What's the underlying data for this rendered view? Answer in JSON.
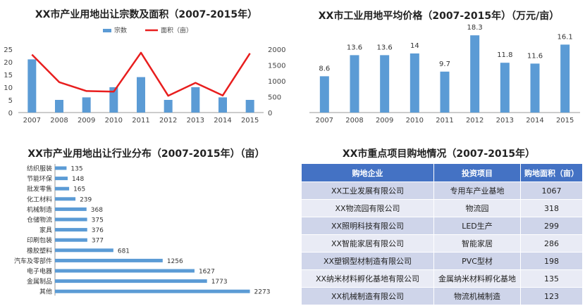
{
  "chart1": {
    "title": "XX市产业用地出让宗数及面积（2007-2015年）",
    "legend": [
      "宗数",
      "面积（亩）"
    ],
    "colors": {
      "bar": "#5B9BD5",
      "line": "#E81E1E"
    }
  },
  "chart2": {
    "title": "XX市工业用地平均价格（2007-2015年）（万元/亩）",
    "colors": {
      "bar": "#5B9BD5"
    }
  },
  "chart3": {
    "title": "XX市产业用地出让行业分布（2007-2015年）（亩）",
    "colors": {
      "bar": "#5B9BD5"
    }
  },
  "table": {
    "title": "XX市重点项目购地情况（2007-2015年）",
    "headers": [
      "购地企业",
      "投资项目",
      "购地面积（亩）"
    ],
    "rows": [
      [
        "XX工业发展有限公司",
        "专用车产业基地",
        "1067"
      ],
      [
        "XX物流园有限公司",
        "物流园",
        "318"
      ],
      [
        "XX照明科技有限公司",
        "LED生产",
        "299"
      ],
      [
        "XX智能家居有限公司",
        "智能家居",
        "286"
      ],
      [
        "XX塑钢型材制造有限公司",
        "PVC型材",
        "198"
      ],
      [
        "XX纳米材料孵化基地有限公司",
        "金属纳米材料孵化基地",
        "135"
      ],
      [
        "XX机械制造有限公司",
        "物流机械制造",
        "123"
      ]
    ]
  },
  "chart_data": [
    {
      "type": "bar+line",
      "title": "XX市产业用地出让宗数及面积（2007-2015年）",
      "categories": [
        "2007",
        "2008",
        "2009",
        "2010",
        "2011",
        "2012",
        "2013",
        "2014",
        "2015"
      ],
      "series": [
        {
          "name": "宗数",
          "type": "bar",
          "axis": "left",
          "values": [
            21,
            5,
            6,
            10,
            14,
            5,
            10,
            6,
            5
          ]
        },
        {
          "name": "面积（亩）",
          "type": "line",
          "axis": "right",
          "values": [
            1830,
            960,
            680,
            660,
            1890,
            530,
            940,
            540,
            1870
          ]
        }
      ],
      "ylim_left": [
        0,
        25
      ],
      "yticks_left": [
        0,
        5,
        10,
        15,
        20,
        25
      ],
      "ylim_right": [
        0,
        2000
      ],
      "yticks_right": [
        0,
        500,
        1000,
        1500,
        2000
      ],
      "legend_position": "top"
    },
    {
      "type": "bar",
      "title": "XX市工业用地平均价格（2007-2015年）（万元/亩）",
      "categories": [
        "2007",
        "2008",
        "2009",
        "2010",
        "2011",
        "2012",
        "2013",
        "2014",
        "2015"
      ],
      "values": [
        8.6,
        13.6,
        13.6,
        14,
        9.7,
        18.3,
        11.8,
        11.6,
        16.1
      ],
      "data_labels": [
        "8.6",
        "13.6",
        "13.6",
        "14",
        "9.7",
        "18.3",
        "11.8",
        "11.6",
        "16.1"
      ],
      "ylim": [
        0,
        20
      ]
    },
    {
      "type": "bar",
      "orientation": "horizontal",
      "title": "XX市产业用地出让行业分布（2007-2015年）（亩）",
      "categories": [
        "纺织服装",
        "节能环保",
        "批发零售",
        "化工材料",
        "机械制造",
        "仓储物流",
        "家具",
        "印刷包装",
        "橡胶塑料",
        "汽车及零部件",
        "电子电器",
        "金属制品",
        "其他"
      ],
      "values": [
        135,
        148,
        165,
        239,
        368,
        375,
        376,
        377,
        681,
        1256,
        1627,
        1773,
        2273
      ],
      "xlim": [
        0,
        2400
      ]
    }
  ]
}
